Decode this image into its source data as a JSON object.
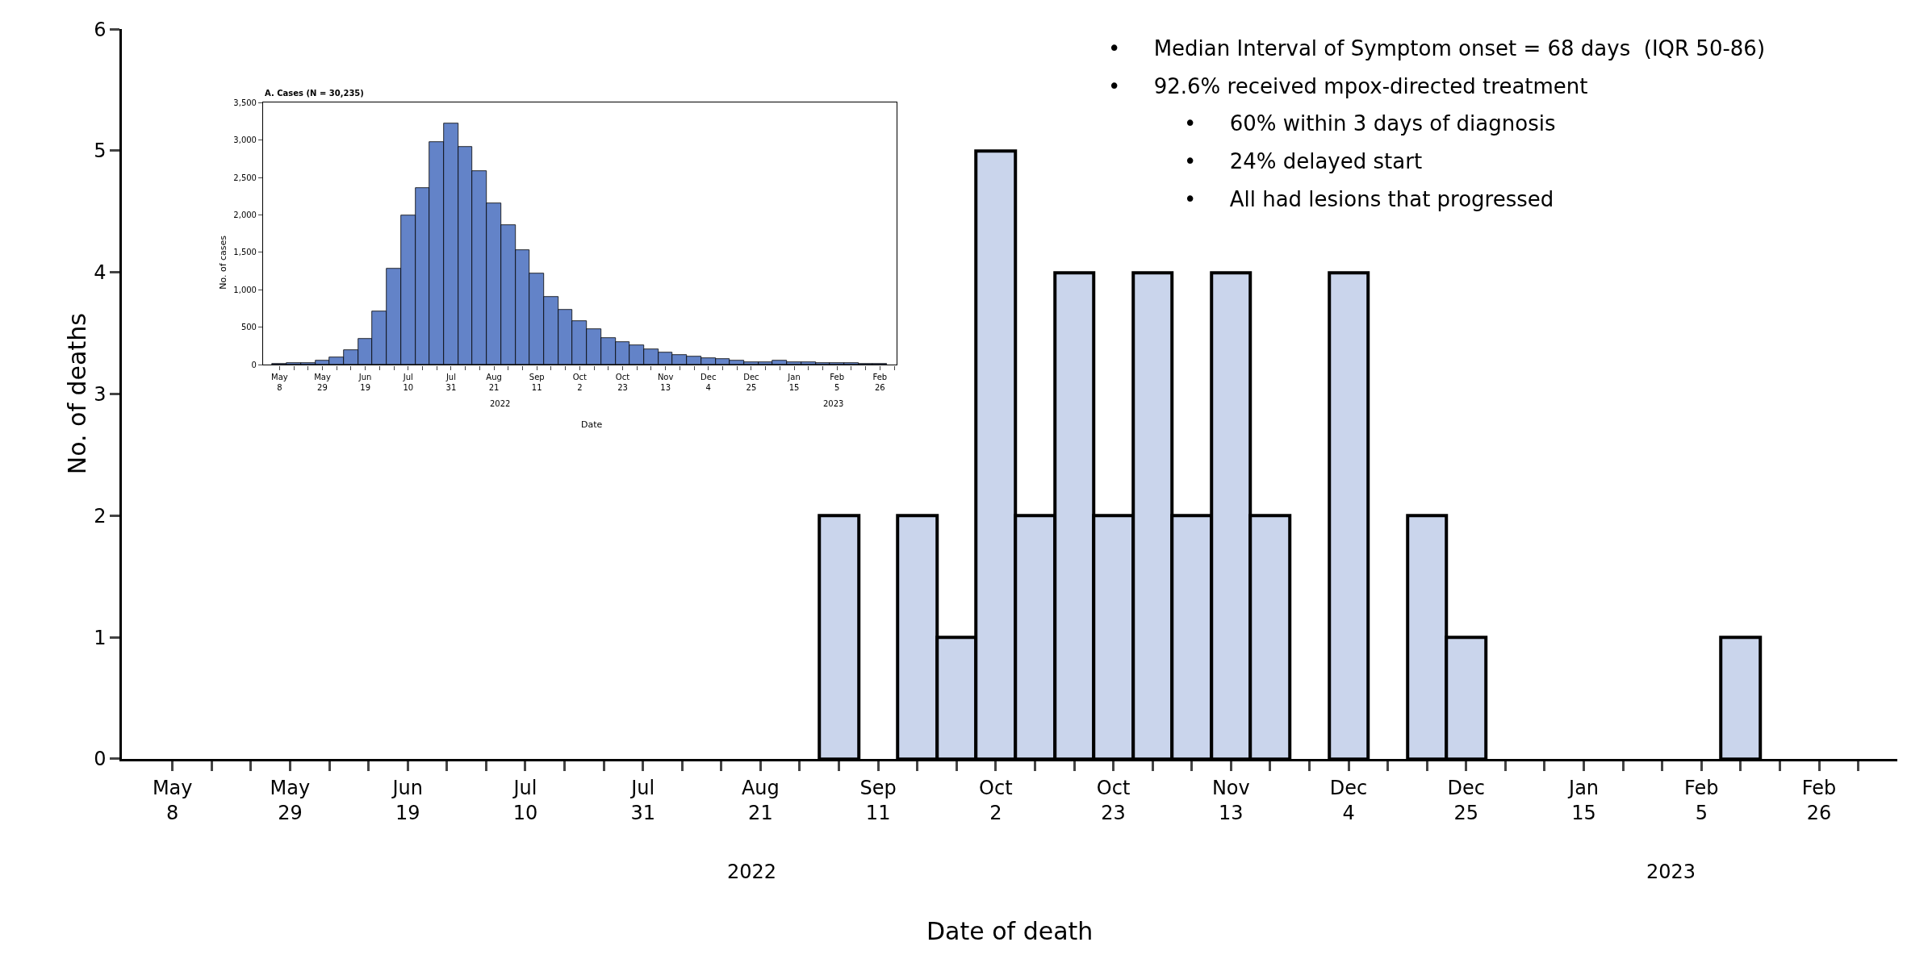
{
  "chart_data": [
    {
      "type": "bar",
      "xlabel": "Date of death",
      "ylabel": "No. of deaths",
      "color": "#cad5ec",
      "x": [
        "2022-05-08",
        "2022-05-15",
        "2022-05-22",
        "2022-05-29",
        "2022-06-05",
        "2022-06-12",
        "2022-06-19",
        "2022-06-26",
        "2022-07-03",
        "2022-07-10",
        "2022-07-17",
        "2022-07-24",
        "2022-07-31",
        "2022-08-07",
        "2022-08-14",
        "2022-08-21",
        "2022-08-28",
        "2022-09-04",
        "2022-09-11",
        "2022-09-18",
        "2022-09-25",
        "2022-10-02",
        "2022-10-09",
        "2022-10-16",
        "2022-10-23",
        "2022-10-30",
        "2022-11-06",
        "2022-11-13",
        "2022-11-20",
        "2022-11-27",
        "2022-12-04",
        "2022-12-11",
        "2022-12-18",
        "2022-12-25",
        "2023-01-01",
        "2023-01-08",
        "2023-01-15",
        "2023-01-22",
        "2023-01-29",
        "2023-02-05",
        "2023-02-12",
        "2023-02-19",
        "2023-02-26"
      ],
      "values": [
        0,
        0,
        0,
        0,
        0,
        0,
        0,
        0,
        0,
        0,
        0,
        0,
        0,
        0,
        0,
        0,
        0,
        2,
        0,
        2,
        1,
        5,
        2,
        4,
        2,
        4,
        2,
        4,
        2,
        0,
        4,
        0,
        2,
        1,
        0,
        0,
        0,
        0,
        0,
        0,
        1,
        0,
        0
      ],
      "xlim": [
        "2022-04-29",
        "2023-03-12"
      ],
      "ylim": [
        0,
        6
      ],
      "yticks": [
        0,
        1,
        2,
        3,
        4,
        5,
        6
      ],
      "xticks": [
        {
          "value": "2022-05-08",
          "label": "May\n8"
        },
        {
          "value": "2022-05-15",
          "label": null
        },
        {
          "value": "2022-05-22",
          "label": null
        },
        {
          "value": "2022-05-29",
          "label": "May\n29"
        },
        {
          "value": "2022-06-05",
          "label": null
        },
        {
          "value": "2022-06-12",
          "label": null
        },
        {
          "value": "2022-06-19",
          "label": "Jun\n19"
        },
        {
          "value": "2022-06-26",
          "label": null
        },
        {
          "value": "2022-07-03",
          "label": null
        },
        {
          "value": "2022-07-10",
          "label": "Jul\n10"
        },
        {
          "value": "2022-07-17",
          "label": null
        },
        {
          "value": "2022-07-24",
          "label": null
        },
        {
          "value": "2022-07-31",
          "label": "Jul\n31"
        },
        {
          "value": "2022-08-07",
          "label": null
        },
        {
          "value": "2022-08-14",
          "label": null
        },
        {
          "value": "2022-08-21",
          "label": "Aug\n21"
        },
        {
          "value": "2022-08-28",
          "label": null
        },
        {
          "value": "2022-09-04",
          "label": null
        },
        {
          "value": "2022-09-11",
          "label": "Sep\n11"
        },
        {
          "value": "2022-09-18",
          "label": null
        },
        {
          "value": "2022-09-25",
          "label": null
        },
        {
          "value": "2022-10-02",
          "label": "Oct\n2"
        },
        {
          "value": "2022-10-09",
          "label": null
        },
        {
          "value": "2022-10-16",
          "label": null
        },
        {
          "value": "2022-10-23",
          "label": "Oct\n23"
        },
        {
          "value": "2022-10-30",
          "label": null
        },
        {
          "value": "2022-11-06",
          "label": null
        },
        {
          "value": "2022-11-13",
          "label": "Nov\n13"
        },
        {
          "value": "2022-11-20",
          "label": null
        },
        {
          "value": "2022-11-27",
          "label": null
        },
        {
          "value": "2022-12-04",
          "label": "Dec\n4"
        },
        {
          "value": "2022-12-11",
          "label": null
        },
        {
          "value": "2022-12-18",
          "label": null
        },
        {
          "value": "2022-12-25",
          "label": "Dec\n25"
        },
        {
          "value": "2023-01-01",
          "label": null
        },
        {
          "value": "2023-01-08",
          "label": null
        },
        {
          "value": "2023-01-15",
          "label": "Jan\n15"
        },
        {
          "value": "2023-01-22",
          "label": null
        },
        {
          "value": "2023-01-29",
          "label": null
        },
        {
          "value": "2023-02-05",
          "label": "Feb\n5"
        },
        {
          "value": "2023-02-12",
          "label": null
        },
        {
          "value": "2023-02-19",
          "label": null
        },
        {
          "value": "2023-02-26",
          "label": "Feb\n26"
        },
        {
          "value": "2023-03-05",
          "label": null
        }
      ],
      "annotations": [
        "•     Median Interval of Symptom onset = 68 days  (IQR 50-86)",
        "•     92.6% received mpox-directed treatment",
        "•     60% within 3 days of diagnosis",
        "•     24% delayed start",
        "•     All had lesions that progressed",
        "2022",
        "2023"
      ]
    },
    {
      "type": "bar",
      "title": "A. Cases (N = 30,235)",
      "xlabel": "Date",
      "ylabel": "No. of cases",
      "color": "#6383c8",
      "x": [
        "2022-05-08",
        "2022-05-15",
        "2022-05-22",
        "2022-05-29",
        "2022-06-05",
        "2022-06-12",
        "2022-06-19",
        "2022-06-26",
        "2022-07-03",
        "2022-07-10",
        "2022-07-17",
        "2022-07-24",
        "2022-07-31",
        "2022-08-07",
        "2022-08-14",
        "2022-08-21",
        "2022-08-28",
        "2022-09-04",
        "2022-09-11",
        "2022-09-18",
        "2022-09-25",
        "2022-10-02",
        "2022-10-09",
        "2022-10-16",
        "2022-10-23",
        "2022-10-30",
        "2022-11-06",
        "2022-11-13",
        "2022-11-20",
        "2022-11-27",
        "2022-12-04",
        "2022-12-11",
        "2022-12-18",
        "2022-12-25",
        "2023-01-01",
        "2023-01-08",
        "2023-01-15",
        "2023-01-22",
        "2023-01-29",
        "2023-02-05",
        "2023-02-12",
        "2023-02-19",
        "2023-02-26"
      ],
      "values": [
        10,
        20,
        20,
        60,
        100,
        200,
        350,
        710,
        1280,
        1990,
        2360,
        2970,
        3220,
        2910,
        2590,
        2160,
        1870,
        1530,
        1220,
        910,
        740,
        580,
        480,
        360,
        300,
        260,
        210,
        170,
        130,
        110,
        90,
        80,
        60,
        40,
        40,
        60,
        40,
        40,
        30,
        20,
        20,
        10,
        10
      ],
      "xlim": [
        "2022-04-30",
        "2023-03-06"
      ],
      "ylim": [
        0,
        3500
      ],
      "yticks": [
        0,
        500,
        {
          "value": 1000,
          "label": "1,000"
        },
        {
          "value": 1500,
          "label": "1,500"
        },
        {
          "value": 2000,
          "label": "2,000"
        },
        {
          "value": 2500,
          "label": "2,500"
        },
        {
          "value": 3000,
          "label": "3,000"
        },
        {
          "value": 3500,
          "label": "3,500"
        }
      ],
      "xticks": [
        {
          "value": "2022-05-08",
          "label": "May\n8"
        },
        {
          "value": "2022-05-15",
          "label": null
        },
        {
          "value": "2022-05-22",
          "label": null
        },
        {
          "value": "2022-05-29",
          "label": "May\n29"
        },
        {
          "value": "2022-06-05",
          "label": null
        },
        {
          "value": "2022-06-12",
          "label": null
        },
        {
          "value": "2022-06-19",
          "label": "Jun\n19"
        },
        {
          "value": "2022-06-26",
          "label": null
        },
        {
          "value": "2022-07-03",
          "label": null
        },
        {
          "value": "2022-07-10",
          "label": "Jul\n10"
        },
        {
          "value": "2022-07-17",
          "label": null
        },
        {
          "value": "2022-07-24",
          "label": null
        },
        {
          "value": "2022-07-31",
          "label": "Jul\n31"
        },
        {
          "value": "2022-08-07",
          "label": null
        },
        {
          "value": "2022-08-14",
          "label": null
        },
        {
          "value": "2022-08-21",
          "label": "Aug\n21"
        },
        {
          "value": "2022-08-28",
          "label": null
        },
        {
          "value": "2022-09-04",
          "label": null
        },
        {
          "value": "2022-09-11",
          "label": "Sep\n11"
        },
        {
          "value": "2022-09-18",
          "label": null
        },
        {
          "value": "2022-09-25",
          "label": null
        },
        {
          "value": "2022-10-02",
          "label": "Oct\n2"
        },
        {
          "value": "2022-10-09",
          "label": null
        },
        {
          "value": "2022-10-16",
          "label": null
        },
        {
          "value": "2022-10-23",
          "label": "Oct\n23"
        },
        {
          "value": "2022-10-30",
          "label": null
        },
        {
          "value": "2022-11-06",
          "label": null
        },
        {
          "value": "2022-11-13",
          "label": "Nov\n13"
        },
        {
          "value": "2022-11-20",
          "label": null
        },
        {
          "value": "2022-11-27",
          "label": null
        },
        {
          "value": "2022-12-04",
          "label": "Dec\n4"
        },
        {
          "value": "2022-12-11",
          "label": null
        },
        {
          "value": "2022-12-18",
          "label": null
        },
        {
          "value": "2022-12-25",
          "label": "Dec\n25"
        },
        {
          "value": "2023-01-01",
          "label": null
        },
        {
          "value": "2023-01-08",
          "label": null
        },
        {
          "value": "2023-01-15",
          "label": "Jan\n15"
        },
        {
          "value": "2023-01-22",
          "label": null
        },
        {
          "value": "2023-01-29",
          "label": null
        },
        {
          "value": "2023-02-05",
          "label": "Feb\n5"
        },
        {
          "value": "2023-02-12",
          "label": null
        },
        {
          "value": "2023-02-19",
          "label": null
        },
        {
          "value": "2023-02-26",
          "label": "Feb\n26"
        },
        {
          "value": "2023-03-05",
          "label": null
        }
      ],
      "annotations": [
        "2022",
        "2023"
      ]
    }
  ]
}
